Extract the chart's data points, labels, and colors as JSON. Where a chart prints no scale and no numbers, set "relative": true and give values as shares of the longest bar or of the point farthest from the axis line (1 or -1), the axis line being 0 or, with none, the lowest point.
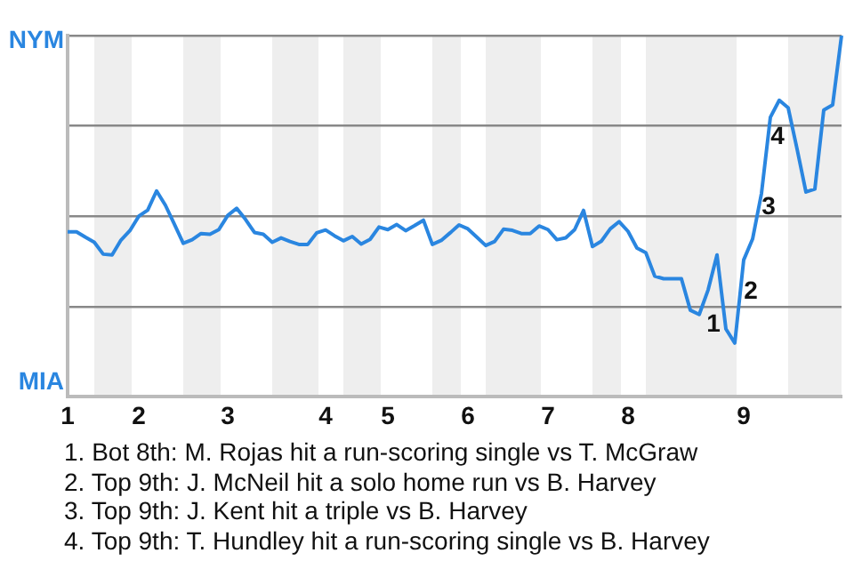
{
  "chart_data": {
    "type": "line",
    "relative": true,
    "categories": [
      "1",
      null,
      null,
      null,
      null,
      null,
      null,
      null,
      "2",
      null,
      null,
      null,
      null,
      null,
      null,
      null,
      null,
      null,
      "3",
      null,
      null,
      null,
      null,
      null,
      null,
      null,
      null,
      null,
      null,
      "4",
      null,
      null,
      null,
      null,
      null,
      null,
      "5",
      null,
      null,
      null,
      null,
      null,
      null,
      null,
      null,
      "6",
      null,
      null,
      null,
      null,
      null,
      null,
      null,
      null,
      "7",
      null,
      null,
      null,
      null,
      null,
      null,
      null,
      null,
      "8",
      null,
      null,
      null,
      null,
      null,
      null,
      null,
      null,
      null,
      null,
      null,
      null,
      "9",
      null,
      null,
      null,
      null,
      null,
      null,
      null,
      null,
      null,
      null,
      null
    ],
    "series": [
      {
        "color": "#2a86e0",
        "values": [
          0.457,
          0.457,
          0.442,
          0.428,
          0.395,
          0.393,
          0.434,
          0.46,
          0.5,
          0.517,
          0.57,
          0.53,
          0.478,
          0.425,
          0.435,
          0.452,
          0.45,
          0.463,
          0.502,
          0.522,
          0.491,
          0.455,
          0.45,
          0.428,
          0.44,
          0.43,
          0.422,
          0.422,
          0.454,
          0.462,
          0.446,
          0.432,
          0.444,
          0.423,
          0.436,
          0.47,
          0.463,
          0.477,
          0.46,
          0.474,
          0.489,
          0.422,
          0.433,
          0.454,
          0.476,
          0.465,
          0.442,
          0.419,
          0.43,
          0.464,
          0.461,
          0.452,
          0.452,
          0.473,
          0.463,
          0.435,
          0.44,
          0.463,
          0.516,
          0.416,
          0.431,
          0.465,
          0.485,
          0.458,
          0.412,
          0.399,
          0.334,
          0.327,
          0.327,
          0.327,
          0.24,
          0.228,
          0.296,
          0.393,
          0.188,
          0.149,
          0.379,
          0.437,
          0.563,
          0.774,
          0.821,
          0.8,
          0.686,
          0.567,
          0.575,
          0.794,
          0.808,
          1
        ]
      }
    ],
    "grid": "y",
    "legend": false,
    "marker": "none",
    "line_style": "solid",
    "tick_labels": "x",
    "annotations": [
      "NYM",
      "MIA",
      "1",
      "2",
      "3",
      "4",
      "1. Bot 8th: M. Rojas hit a run-scoring single vs T. McGraw",
      "2. Top 9th: J. McNeil hit a solo home run vs B. Harvey",
      "3. Top 9th: J. Kent hit a triple vs B. Harvey",
      "4. Top 9th: T. Hundley hit a run-scoring single vs B. Harvey"
    ]
  }
}
